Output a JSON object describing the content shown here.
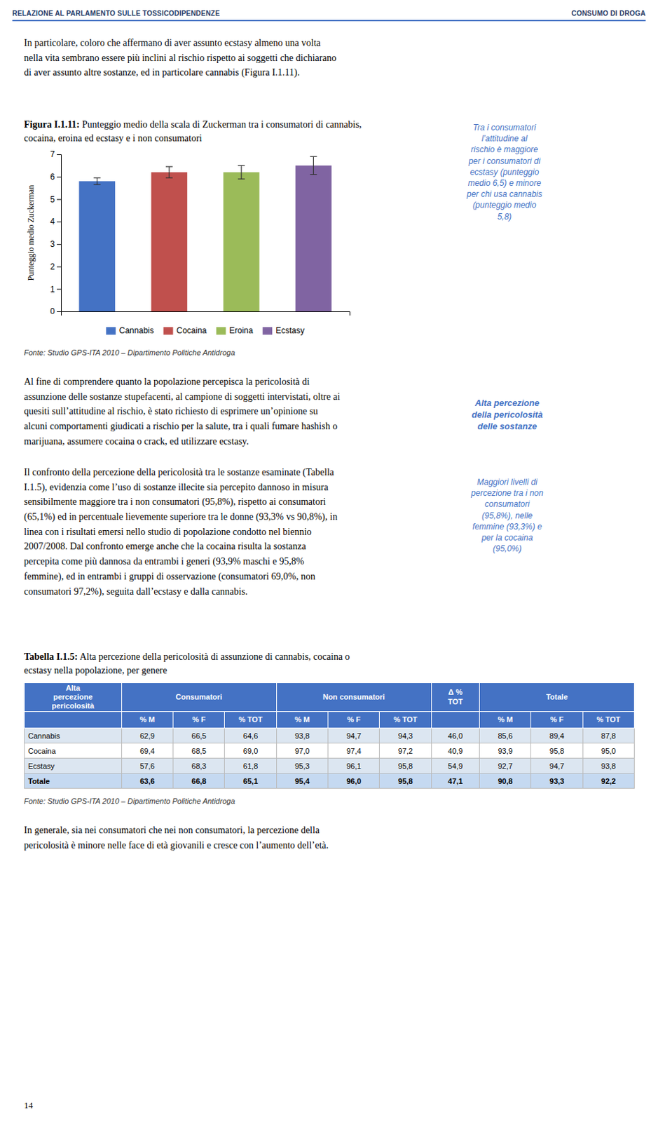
{
  "header_left": "RELAZIONE AL PARLAMENTO SULLE TOSSICODIPENDENZE",
  "header_right": "CONSUMO DI DROGA",
  "intro_text": "In particolare, coloro che affermano di aver assunto ecstasy almeno una volta\nnella vita sembrano essere più inclini al rischio rispetto ai soggetti che dichiarano\ndi aver assunto altre sostanze, ed in particolare cannabis (Figura I.1.11).",
  "figure_title_bold": "Figura I.1.11:",
  "figure_title_rest": " Punteggio medio della scala di Zuckerman tra i consumatori di cannabis,\ncocaina, eroina ed ecstasy e i non consumatori",
  "sidebar_text1": "Tra i consumatori\nl’attitudine al\nrischio è maggiore\nper i consumatori di\necstasy (punteggio\nmedio 6,5) e minore\nper chi usa cannabis\n(punteggio medio\n5,8)",
  "chart_data": {
    "type": "bar",
    "categories": [
      "Cannabis",
      "Cocaina",
      "Eroina",
      "Ecstasy"
    ],
    "values": [
      5.8,
      6.2,
      6.2,
      6.5
    ],
    "errors": [
      0.15,
      0.25,
      0.3,
      0.4
    ],
    "colors": [
      "#4472C4",
      "#C0504D",
      "#9BBB59",
      "#8064A2"
    ],
    "ylabel": "Punteggio medio Zuckerman",
    "ylim": [
      0,
      7
    ],
    "yticks": [
      0,
      1,
      2,
      3,
      4,
      5,
      6,
      7
    ],
    "legend": "bottom",
    "tick_labels": "y",
    "grid": false
  },
  "fonte_text": "Fonte: Studio GPS-ITA 2010 – Dipartimento Politiche Antidroga",
  "body_text2": "Al fine di comprendere quanto la popolazione percepisca la pericolosità di\nassunzione delle sostanze stupefacenti, al campione di soggetti intervistati, oltre ai\nquesiti sull’attitudine al rischio, è stato richiesto di esprimere un’opinione su\nalcuni comportamenti giudicati a rischio per la salute, tra i quali fumare hashish o\nmarijuana, assumere cocaina o crack, ed utilizzare ecstasy.",
  "sidebar_text2": "Alta percezione\ndella pericolosità\ndelle sostanze",
  "body_text3": "Il confronto della percezione della pericolosità tra le sostanze esaminate (Tabella\nI.1.5), evidenzia come l’uso di sostanze illecite sia percepito dannoso in misura\nsensibilmente maggiore tra i non consumatori (95,8%), rispetto ai consumatori\n(65,1%) ed in percentuale lievemente superiore tra le donne (93,3% vs 90,8%), in\nlinea con i risultati emersi nello studio di popolazione condotto nel biennio\n2007/2008. Dal confronto emerge anche che la cocaina risulta la sostanza\npercepita come più dannosa da entrambi i generi (93,9% maschi e 95,8%\nfemmine), ed in entrambi i gruppi di osservazione (consumatori 69,0%, non\nconsumatori 97,2%), seguita dall’ecstasy e dalla cannabis.",
  "sidebar_text3": "Maggiori livelli di\npercezione tra i non\nconsumatori\n(95,8%), nelle\nfemmine (93,3%) e\nper la cocaina\n(95,0%)",
  "table_title_bold": "Tabella I.1.5:",
  "table_title_rest": " Alta percezione della pericolosità di assunzione di cannabis, cocaina o\necstasy nella popolazione, per genere",
  "table": {
    "group_headers": [
      {
        "label": "Alta\npercezione\npericolosità",
        "span": 1
      },
      {
        "label": "Consumatori",
        "span": 3
      },
      {
        "label": "Non consumatori",
        "span": 3
      },
      {
        "label": "Δ %\nTOT",
        "span": 1
      },
      {
        "label": "Totale",
        "span": 3
      }
    ],
    "sub_headers": [
      null,
      "% M",
      "% F",
      "% TOT",
      "% M",
      "% F",
      "% TOT",
      null,
      "% M",
      "% F",
      "% TOT"
    ],
    "rows": [
      [
        "Cannabis",
        "62,9",
        "66,5",
        "64,6",
        "93,8",
        "94,7",
        "94,3",
        "46,0",
        "85,6",
        "89,4",
        "87,8"
      ],
      [
        "Cocaina",
        "69,4",
        "68,5",
        "69,0",
        "97,0",
        "97,4",
        "97,2",
        "40,9",
        "93,9",
        "95,8",
        "95,0"
      ],
      [
        "Ecstasy",
        "57,6",
        "68,3",
        "61,8",
        "95,3",
        "96,1",
        "95,8",
        "54,9",
        "92,7",
        "94,7",
        "93,8"
      ],
      [
        "Totale",
        "63,6",
        "66,8",
        "65,1",
        "95,4",
        "96,0",
        "95,8",
        "47,1",
        "90,8",
        "93,3",
        "92,2"
      ]
    ]
  },
  "fonte_text2": "Fonte: Studio GPS-ITA 2010 – Dipartimento Politiche Antidroga",
  "body_text4": "In generale, sia nei consumatori che nei non consumatori, la percezione della\npericolosità è minore nelle face di età giovanili e cresce con l’aumento dell’età.",
  "page_number": "14"
}
